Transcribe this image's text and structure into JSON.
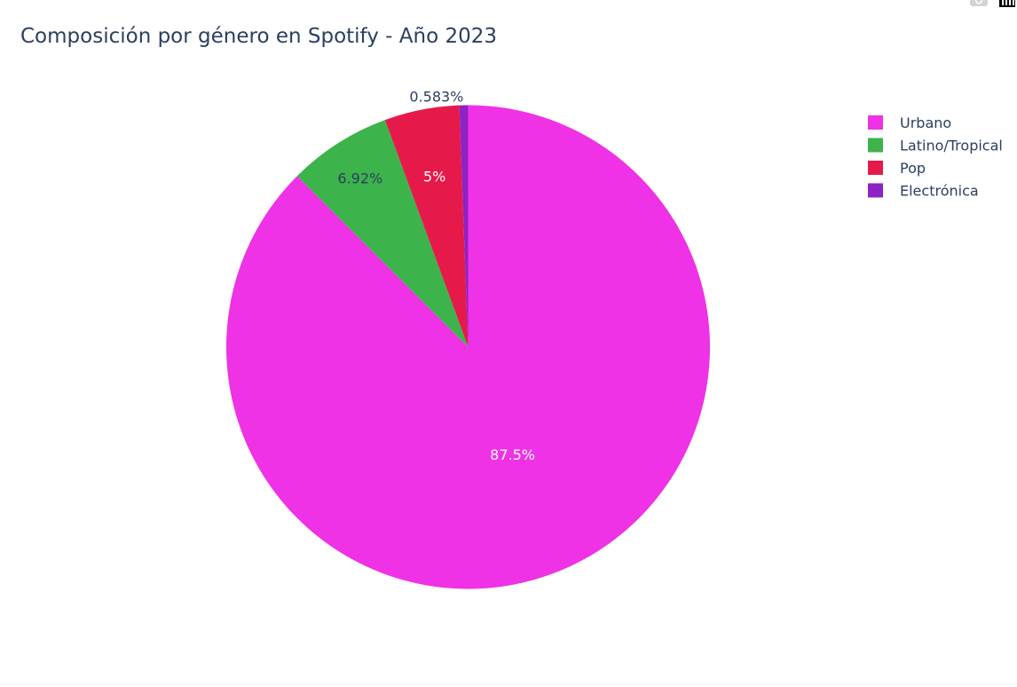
{
  "title": "Composición por género en Spotify - Año 2023",
  "chart_data": {
    "type": "pie",
    "title": "Composición por género en Spotify - Año 2023",
    "direction": "clockwise",
    "start": "12 o'clock",
    "slices": [
      {
        "label": "Urbano",
        "value": 87.5,
        "text": "87.5%",
        "color": "#ef32e6",
        "text_color": "#ffffff",
        "text_position": "inside"
      },
      {
        "label": "Latino/Tropical",
        "value": 6.92,
        "text": "6.92%",
        "color": "#3db34b",
        "text_color": "#2a3f5f",
        "text_position": "inside"
      },
      {
        "label": "Pop",
        "value": 5.0,
        "text": "5%",
        "color": "#e6194b",
        "text_color": "#ffffff",
        "text_position": "inside"
      },
      {
        "label": "Electrónica",
        "value": 0.583,
        "text": "0.583%",
        "color": "#8f22c2",
        "text_color": "#2a3f5f",
        "text_position": "outside"
      }
    ],
    "legend": {
      "placement": "top-right",
      "items": [
        "Urbano",
        "Latino/Tropical",
        "Pop",
        "Electrónica"
      ]
    }
  },
  "toolbar": {
    "camera_icon": "camera-icon",
    "plotly_logo_icon": "plotly-logo-icon"
  }
}
